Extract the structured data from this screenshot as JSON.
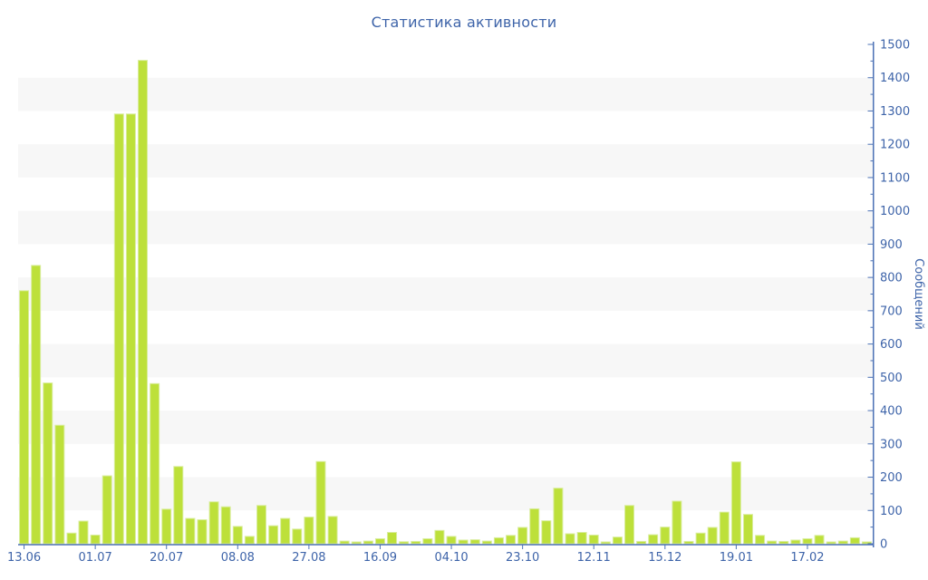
{
  "chart_data": {
    "type": "bar",
    "title": "Статистика активности",
    "xlabel": "",
    "ylabel": "Сообщений",
    "ylim": [
      0,
      1500
    ],
    "y_major_step": 100,
    "y_minor_step": 50,
    "y_ticks": [
      0,
      100,
      200,
      300,
      400,
      500,
      600,
      700,
      800,
      900,
      1000,
      1100,
      1200,
      1300,
      1400,
      1500
    ],
    "x_tick_every": 6,
    "x_tick_labels": [
      "13.06",
      "01.07",
      "20.07",
      "08.08",
      "27.08",
      "16.09",
      "04.10",
      "23.10",
      "12.11",
      "15.12",
      "19.01",
      "17.02"
    ],
    "values": [
      760,
      836,
      483,
      356,
      32,
      68,
      26,
      204,
      1291,
      1291,
      1452,
      481,
      104,
      232,
      76,
      72,
      126,
      111,
      52,
      22,
      115,
      54,
      76,
      44,
      80,
      247,
      82,
      8,
      5,
      8,
      15,
      34,
      6,
      7,
      15,
      40,
      22,
      11,
      12,
      8,
      18,
      25,
      49,
      105,
      69,
      167,
      30,
      34,
      26,
      5,
      20,
      115,
      7,
      27,
      50,
      128,
      7,
      32,
      49,
      95,
      246,
      88,
      25,
      8,
      7,
      11,
      15,
      25,
      5,
      8,
      18,
      5
    ],
    "grid": "horizontal-bands-per-100",
    "legend": false,
    "colors": {
      "bar_fill": "#bde03a",
      "bar_edge": "#d9ed9d",
      "axis_line": "#4b71b5",
      "text": "#3e64a9",
      "band_gray": "#f7f7f7",
      "background": "#ffffff"
    }
  }
}
